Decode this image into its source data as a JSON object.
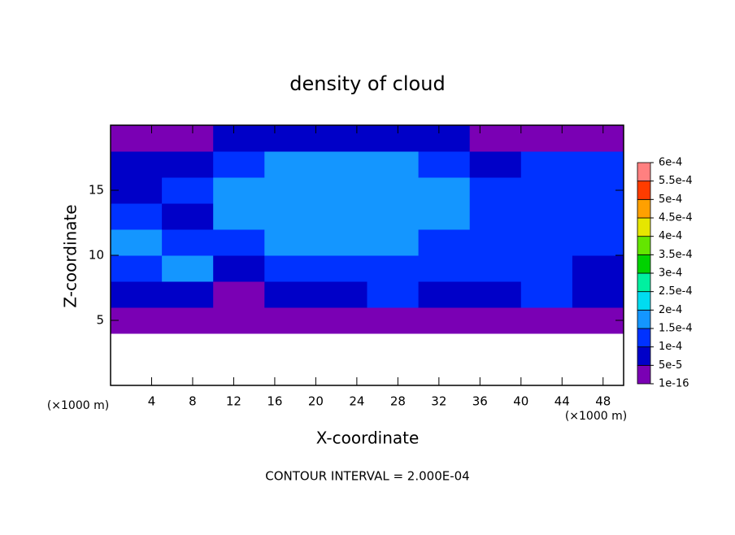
{
  "chart_data": {
    "type": "heatmap",
    "title": "density of cloud",
    "xlabel": "X-coordinate",
    "ylabel": "Z-coordinate",
    "x_unit": "(×1000 m)",
    "footer": "CONTOUR INTERVAL = 2.000E-04",
    "xlim": [
      0,
      50
    ],
    "ylim": [
      0,
      20
    ],
    "xticks": [
      4,
      8,
      12,
      16,
      20,
      24,
      28,
      32,
      36,
      40,
      44,
      48
    ],
    "yticks": [
      5,
      10,
      15
    ],
    "x": [
      2.5,
      7.5,
      12.5,
      17.5,
      22.5,
      27.5,
      32.5,
      37.5,
      42.5,
      47.5
    ],
    "y": [
      1,
      3,
      5,
      7,
      9,
      11,
      13,
      15,
      17,
      19
    ],
    "z": [
      [
        null,
        null,
        null,
        null,
        null,
        null,
        null,
        null,
        null,
        null
      ],
      [
        null,
        null,
        null,
        null,
        null,
        null,
        null,
        null,
        null,
        null
      ],
      [
        4e-05,
        4e-05,
        3e-05,
        4e-05,
        4e-05,
        4e-05,
        4e-05,
        4e-05,
        4e-05,
        3e-05
      ],
      [
        6e-05,
        8e-05,
        4e-05,
        9e-05,
        9e-05,
        0.0001,
        9e-05,
        9e-05,
        0.00011,
        5e-05
      ],
      [
        0.00014,
        0.00015,
        8e-05,
        0.00012,
        0.00013,
        0.00013,
        0.00012,
        0.00011,
        0.00012,
        8e-05
      ],
      [
        0.00016,
        0.00014,
        0.00012,
        0.00015,
        0.00016,
        0.00017,
        0.00014,
        0.00012,
        0.0001,
        0.0001
      ],
      [
        0.00012,
        8e-05,
        0.00016,
        0.00018,
        0.00018,
        0.00018,
        0.00017,
        0.00014,
        0.00013,
        0.00011
      ],
      [
        9e-05,
        0.0001,
        0.00016,
        0.00018,
        0.00018,
        0.00018,
        0.00017,
        0.0001,
        0.00014,
        0.00012
      ],
      [
        7e-05,
        9e-05,
        0.00013,
        0.00015,
        0.00016,
        0.00016,
        0.00013,
        7e-05,
        0.0001,
        0.00011
      ],
      [
        4e-05,
        4e-05,
        6e-05,
        8e-05,
        8e-05,
        8e-05,
        6e-05,
        4e-05,
        4e-05,
        4e-05
      ]
    ],
    "colorbar": {
      "ticks": [
        {
          "value": 1e-16,
          "label": "1e-16"
        },
        {
          "value": 5e-05,
          "label": "5e-5"
        },
        {
          "value": 0.0001,
          "label": "1e-4"
        },
        {
          "value": 0.00015,
          "label": "1.5e-4"
        },
        {
          "value": 0.0002,
          "label": "2e-4"
        },
        {
          "value": 0.00025,
          "label": "2.5e-4"
        },
        {
          "value": 0.0003,
          "label": "3e-4"
        },
        {
          "value": 0.00035,
          "label": "3.5e-4"
        },
        {
          "value": 0.0004,
          "label": "4e-4"
        },
        {
          "value": 0.00045,
          "label": "4.5e-4"
        },
        {
          "value": 0.0005,
          "label": "5e-4"
        },
        {
          "value": 0.00055,
          "label": "5.5e-4"
        },
        {
          "value": 0.0006,
          "label": "6e-4"
        }
      ],
      "colors": [
        "#7a00b4",
        "#0000c8",
        "#0032ff",
        "#1496ff",
        "#00dcf0",
        "#00f0a0",
        "#00d200",
        "#64e600",
        "#e6e600",
        "#ffa000",
        "#ff3c00",
        "#ff8080"
      ]
    }
  }
}
